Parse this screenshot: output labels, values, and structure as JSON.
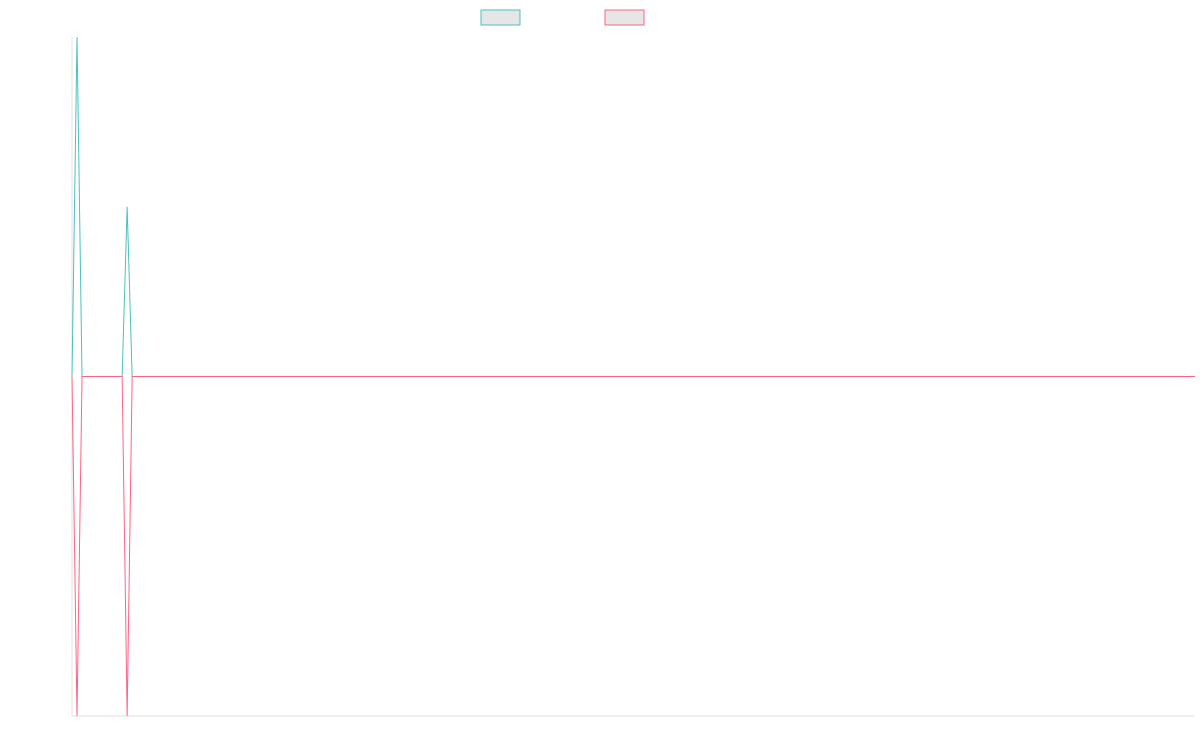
{
  "chart_data": {
    "type": "line",
    "title": "",
    "xlabel": "",
    "ylabel": "",
    "grid": false,
    "legend_position": "top-center",
    "ylim": [
      -1,
      1
    ],
    "x_count": 225,
    "series": [
      {
        "name": "",
        "color": "#4bc0c0",
        "fill": "#e6e6e6",
        "points": [
          [
            0,
            0
          ],
          [
            1,
            1
          ],
          [
            2,
            0
          ],
          [
            10,
            0
          ],
          [
            11,
            0.5
          ],
          [
            12,
            0
          ],
          [
            224,
            0
          ]
        ]
      },
      {
        "name": "",
        "color": "#ff6384",
        "fill": "#e6e6e6",
        "points": [
          [
            0,
            0
          ],
          [
            1,
            -1
          ],
          [
            2,
            0
          ],
          [
            10,
            0
          ],
          [
            11,
            -1
          ],
          [
            12,
            0
          ],
          [
            224,
            0
          ]
        ]
      }
    ]
  }
}
